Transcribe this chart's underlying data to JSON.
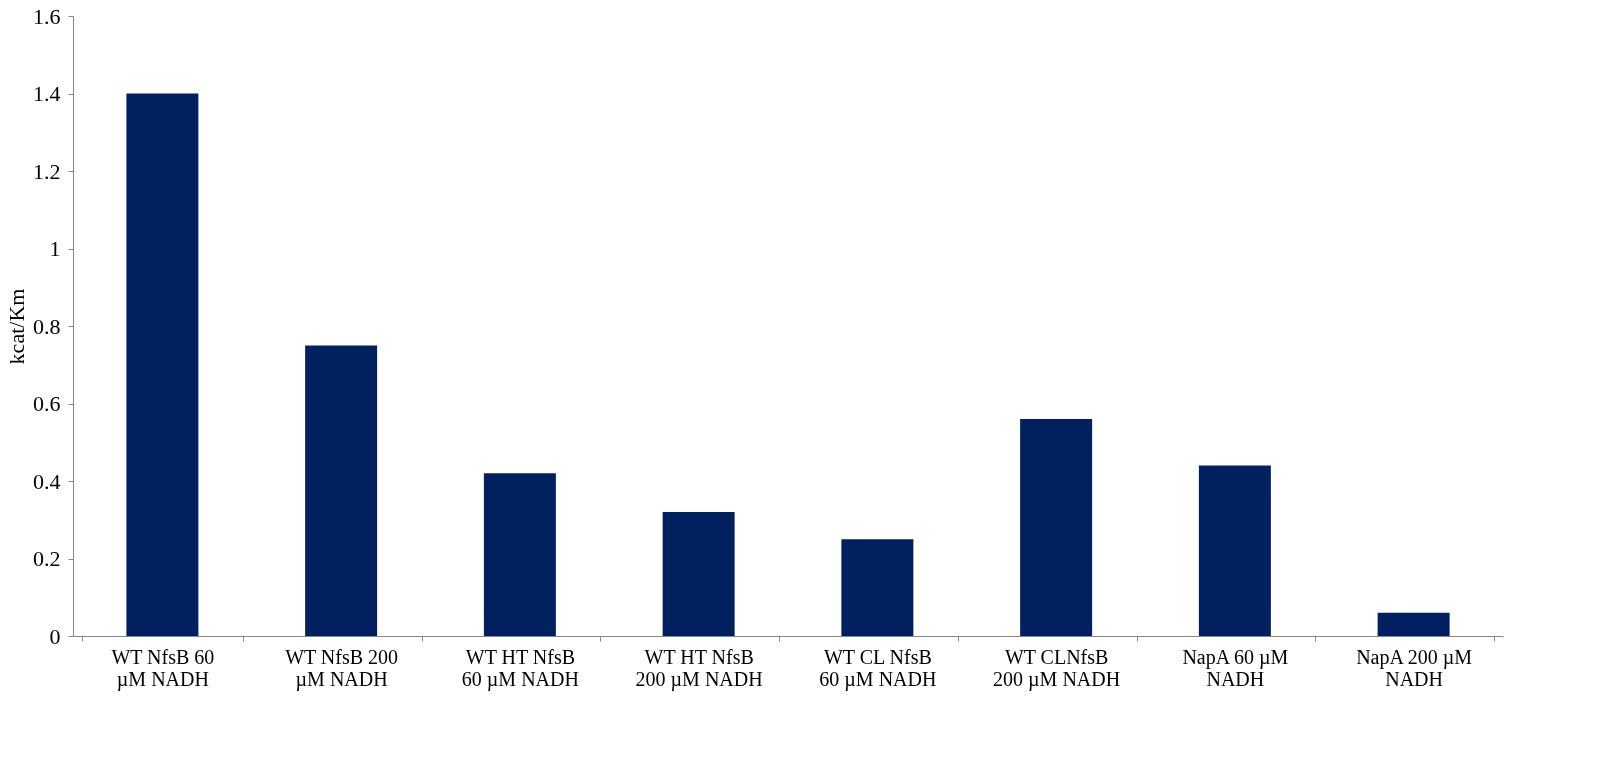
{
  "chart_data": {
    "type": "bar",
    "ylabel": "kcat/Km",
    "categories": [
      "WT NfsB 60 µM NADH",
      "WT NfsB 200 µM NADH",
      "WT HT NfsB 60 µM NADH",
      "WT HT NfsB 200 µM NADH",
      "WT CL NfsB 60 µM NADH",
      "WT CLNfsB 200 µM NADH",
      "NapA 60 µM NADH",
      "NapA 200 µM NADH"
    ],
    "values": [
      1.4,
      0.75,
      0.42,
      0.32,
      0.25,
      0.56,
      0.44,
      0.06
    ],
    "color": "#002060",
    "ylim": [
      0,
      1.6
    ],
    "yticks": [
      0,
      0.2,
      0.4,
      0.6,
      0.8,
      1,
      1.2,
      1.4,
      1.6
    ],
    "grid": false
  }
}
